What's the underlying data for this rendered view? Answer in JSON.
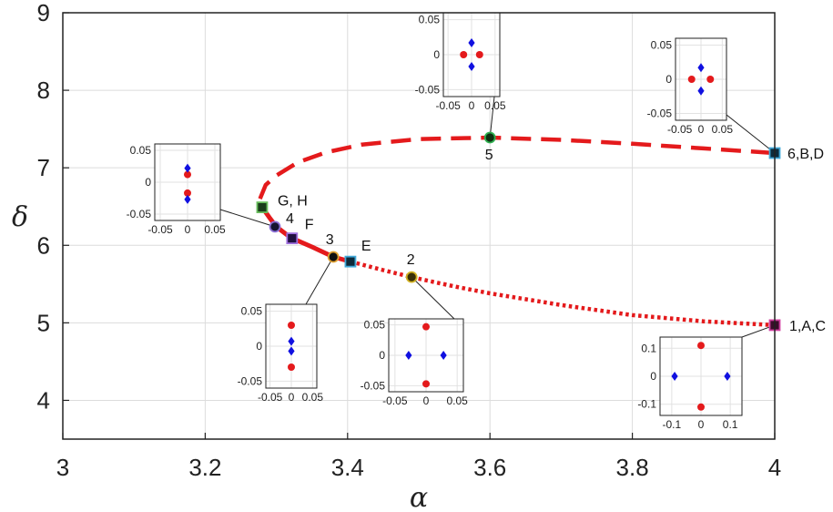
{
  "chart_data": {
    "type": "line",
    "title": "",
    "xlabel": "α",
    "ylabel": "δ",
    "xlim": [
      3,
      4
    ],
    "ylim": [
      3.5,
      9
    ],
    "xticks": [
      "3",
      "3.2",
      "3.4",
      "3.6",
      "3.8",
      "4"
    ],
    "yticks": [
      "4",
      "5",
      "6",
      "7",
      "8",
      "9"
    ],
    "grid": true,
    "series": [
      {
        "name": "solid branch",
        "style": "solid",
        "color": "#e41a1c",
        "points": [
          [
            3.28,
            6.49
          ],
          [
            3.29,
            6.36
          ],
          [
            3.3,
            6.24
          ],
          [
            3.32,
            6.1
          ],
          [
            3.35,
            5.98
          ],
          [
            3.38,
            5.85
          ],
          [
            3.404,
            5.79
          ]
        ]
      },
      {
        "name": "dotted branch",
        "style": "dotted",
        "color": "#e41a1c",
        "points": [
          [
            3.404,
            5.79
          ],
          [
            3.45,
            5.68
          ],
          [
            3.49,
            5.59
          ],
          [
            3.55,
            5.47
          ],
          [
            3.6,
            5.38
          ],
          [
            3.7,
            5.23
          ],
          [
            3.8,
            5.1
          ],
          [
            3.9,
            5.02
          ],
          [
            4.0,
            4.97
          ]
        ]
      },
      {
        "name": "dashed branch",
        "style": "dashed",
        "color": "#e41a1c",
        "points": [
          [
            3.277,
            6.6
          ],
          [
            3.285,
            6.78
          ],
          [
            3.3,
            6.9
          ],
          [
            3.33,
            7.07
          ],
          [
            3.37,
            7.2
          ],
          [
            3.42,
            7.3
          ],
          [
            3.5,
            7.37
          ],
          [
            3.6,
            7.39
          ],
          [
            3.7,
            7.36
          ],
          [
            3.8,
            7.31
          ],
          [
            3.9,
            7.25
          ],
          [
            4.0,
            7.19
          ]
        ]
      }
    ],
    "markers": [
      {
        "label": "G, H",
        "x": 3.28,
        "y": 6.49,
        "shape": "square",
        "fill": "#1b3d1b",
        "edge": "#6abf5e"
      },
      {
        "label": "4",
        "x": 3.298,
        "y": 6.24,
        "shape": "circle",
        "fill": "#151530",
        "edge": "#8a6fd6"
      },
      {
        "label": "F",
        "x": 3.322,
        "y": 6.09,
        "shape": "square",
        "fill": "#201040",
        "edge": "#a070e0"
      },
      {
        "label": "3",
        "x": 3.38,
        "y": 5.85,
        "shape": "circle",
        "fill": "#101010",
        "edge": "#e0a030"
      },
      {
        "label": "E",
        "x": 3.404,
        "y": 5.79,
        "shape": "square",
        "fill": "#0d2a3a",
        "edge": "#40a8d8"
      },
      {
        "label": "2",
        "x": 3.49,
        "y": 5.59,
        "shape": "circle",
        "fill": "#3a3008",
        "edge": "#d0b020"
      },
      {
        "label": "5",
        "x": 3.6,
        "y": 7.39,
        "shape": "circle",
        "fill": "#0d3010",
        "edge": "#30b050"
      },
      {
        "label": "6,B,D",
        "x": 4.0,
        "y": 7.19,
        "shape": "square",
        "fill": "#0d2a3a",
        "edge": "#40a8d8"
      },
      {
        "label": "1,A,C",
        "x": 4.0,
        "y": 4.97,
        "shape": "square",
        "fill": "#3a0d2a",
        "edge": "#d040a0"
      }
    ],
    "insets": [
      {
        "id": "GH",
        "xlim": [
          -0.06,
          0.06
        ],
        "ylim": [
          -0.06,
          0.06
        ],
        "xticks": [
          "-0.05",
          "0",
          "0.05"
        ],
        "yticks": [
          "0.05",
          "0",
          "-0.05"
        ],
        "red_points": [
          [
            0,
            0.012
          ],
          [
            0,
            -0.017
          ]
        ],
        "blue_points": [
          [
            0,
            0.022
          ],
          [
            0,
            -0.027
          ]
        ]
      },
      {
        "id": "3",
        "xlim": [
          -0.06,
          0.06
        ],
        "ylim": [
          -0.06,
          0.06
        ],
        "xticks": [
          "-0.05",
          "0",
          "0.05"
        ],
        "yticks": [
          "0.05",
          "0",
          "-0.05"
        ],
        "red_points": [
          [
            0,
            0.03
          ],
          [
            0,
            -0.03
          ]
        ],
        "blue_points": [
          [
            0,
            0.007
          ],
          [
            0,
            -0.007
          ]
        ]
      },
      {
        "id": "2",
        "xlim": [
          -0.06,
          0.06
        ],
        "ylim": [
          -0.06,
          0.06
        ],
        "xticks": [
          "-0.05",
          "0",
          "0.05"
        ],
        "yticks": [
          "0.05",
          "0",
          "-0.05"
        ],
        "red_points": [
          [
            0,
            0.047
          ],
          [
            0,
            -0.047
          ]
        ],
        "blue_points": [
          [
            -0.028,
            0
          ],
          [
            0.028,
            0
          ]
        ]
      },
      {
        "id": "5",
        "xlim": [
          -0.06,
          0.06
        ],
        "ylim": [
          -0.06,
          0.06
        ],
        "xticks": [
          "-0.05",
          "0",
          "0.05"
        ],
        "yticks": [
          "0.05",
          "0",
          "-0.05"
        ],
        "red_points": [
          [
            -0.017,
            0
          ],
          [
            0.017,
            0
          ]
        ],
        "blue_points": [
          [
            0,
            0.017
          ],
          [
            0,
            -0.017
          ]
        ]
      },
      {
        "id": "6BD",
        "xlim": [
          -0.06,
          0.06
        ],
        "ylim": [
          -0.06,
          0.06
        ],
        "xticks": [
          "-0.05",
          "0",
          "0.05"
        ],
        "yticks": [
          "0.05",
          "0",
          "-0.05"
        ],
        "red_points": [
          [
            -0.022,
            0
          ],
          [
            0.022,
            0
          ]
        ],
        "blue_points": [
          [
            0,
            0.017
          ],
          [
            0,
            -0.017
          ]
        ]
      },
      {
        "id": "1AC",
        "xlim": [
          -0.14,
          0.14
        ],
        "ylim": [
          -0.14,
          0.14
        ],
        "xticks": [
          "-0.1",
          "0",
          "0.1"
        ],
        "yticks": [
          "0.1",
          "0",
          "-0.1"
        ],
        "red_points": [
          [
            0,
            0.11
          ],
          [
            0,
            -0.11
          ]
        ],
        "blue_points": [
          [
            -0.09,
            0
          ],
          [
            0.09,
            0
          ]
        ]
      }
    ]
  }
}
